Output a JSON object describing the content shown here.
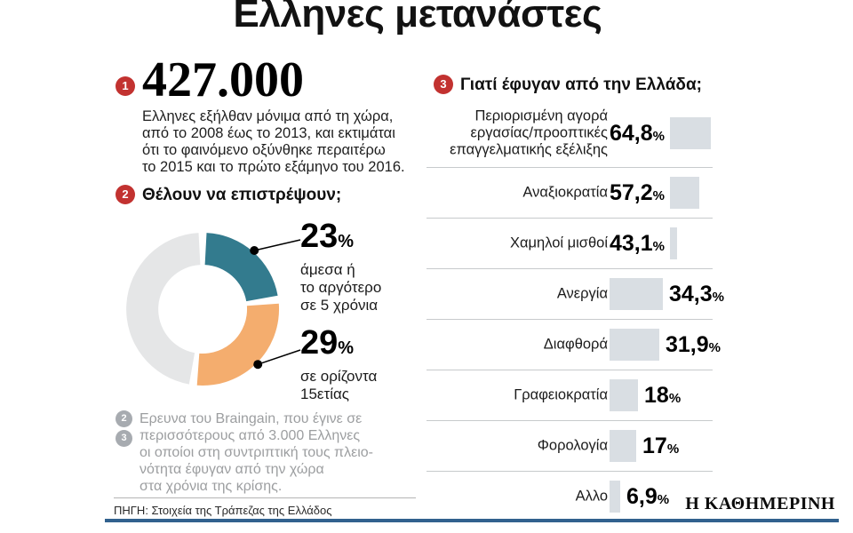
{
  "title": "Ελληνες μετανάστες",
  "percent_symbol": "%",
  "stat": {
    "badge": "1",
    "value": "427.000",
    "description": "Ελληνες εξήλθαν μόνιμα από τη χώρα,\nαπό το 2008 έως το 2013, και εκτιμάται\nότι το φαινόμενο οξύνθηκε περαιτέρω\nτο 2015 και το πρώτο εξάμηνο του 2016."
  },
  "donut_section": {
    "badge": "2",
    "heading": "Θέλουν να επιστρέψουν;"
  },
  "bars_section": {
    "badge": "3",
    "heading": "Γιατί έφυγαν από την Ελλάδα;"
  },
  "footnote": {
    "badges": [
      "2",
      "3"
    ],
    "text": "Ερευνα του Braingain, που έγινε σε\nπερισσότερους από 3.000 Ελληνες\nοι οποίοι στη συντριπτική τους πλειο-\nνότητα έφυγαν από την χώρα\nστα χρόνια της κρίσης."
  },
  "source": "ΠΗΓΗ: Στοιχεία της Τράπεζας της Ελλάδος",
  "brand": "Η ΚΑΘΗΜΕΡΙΝΗ",
  "colors": {
    "badge_red": "#c23230",
    "badge_gray": "#a7abb0",
    "teal": "#337b8e",
    "orange": "#f4ad6e",
    "donut_gray": "#e5e6e7",
    "bar_fill": "#d9dee3",
    "separator": "#c7cacc",
    "footnote_gray": "#9c9ea0",
    "bottom_line_blue": "#31618e"
  },
  "chart_data": [
    {
      "type": "pie",
      "donut": true,
      "title": "Θέλουν να επιστρέψουν;",
      "slices": [
        {
          "label": "άμεσα ή\nτο αργότερο\nσε 5 χρόνια",
          "value": 23,
          "display": "23",
          "color": "#337b8e"
        },
        {
          "label": "σε ορίζοντα\n15ετίας",
          "value": 29,
          "display": "29",
          "color": "#f4ad6e"
        },
        {
          "label": "",
          "value": 48,
          "display": "",
          "color": "#e5e6e7"
        }
      ]
    },
    {
      "type": "bar",
      "orientation": "horizontal",
      "title": "Γιατί έφυγαν από την Ελλάδα;",
      "categories": [
        "Περιορισμένη αγορά\nεργασίας/προοπτικές\nεπαγγελματικής εξέλιξης",
        "Αναξιοκρατία",
        "Χαμηλοί μισθοί",
        "Ανεργία",
        "Διαφθορά",
        "Γραφειοκρατία",
        "Φορολογία",
        "Αλλο"
      ],
      "values": [
        64.8,
        57.2,
        43.1,
        34.3,
        31.9,
        18,
        17,
        6.9
      ],
      "value_labels": [
        "64,8",
        "57,2",
        "43,1",
        "34,3",
        "31,9",
        "18",
        "17",
        "6,9"
      ],
      "unit": "%",
      "xlim": [
        0,
        65
      ],
      "grid": false,
      "legend": "none"
    }
  ]
}
